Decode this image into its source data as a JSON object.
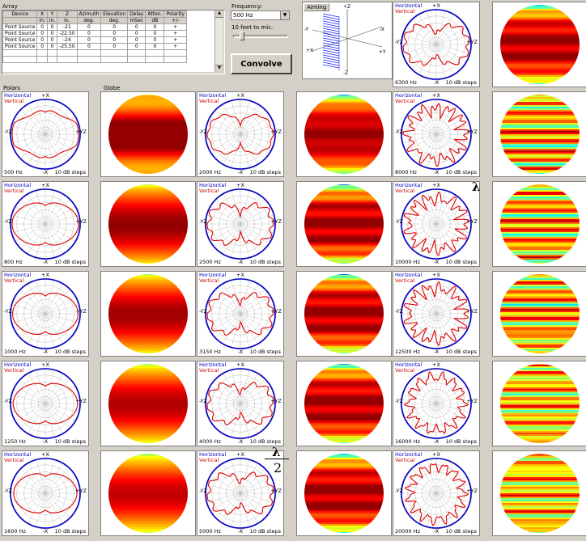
{
  "array_panel": {
    "group_label": "Array",
    "columns": [
      {
        "name": "Device",
        "unit": ""
      },
      {
        "name": "X",
        "unit": "in."
      },
      {
        "name": "Y",
        "unit": "in."
      },
      {
        "name": "Z",
        "unit": "in."
      },
      {
        "name": "Azimuth",
        "unit": "deg."
      },
      {
        "name": "Elevation",
        "unit": "deg."
      },
      {
        "name": "Delay",
        "unit": "mSec"
      },
      {
        "name": "Atten.",
        "unit": "dB"
      },
      {
        "name": "Polarity",
        "unit": "+/-"
      }
    ],
    "rows": [
      [
        "Point Source",
        "0",
        "0",
        "-21",
        "0",
        "0",
        "0",
        "0",
        "+"
      ],
      [
        "Point Source",
        "0",
        "0",
        "-22.50",
        "0",
        "0",
        "0",
        "0",
        "+"
      ],
      [
        "Point Source",
        "0",
        "0",
        "-24",
        "0",
        "0",
        "0",
        "0",
        "+"
      ],
      [
        "Point Source",
        "0",
        "0",
        "-25.50",
        "0",
        "0",
        "0",
        "0",
        "+"
      ]
    ]
  },
  "controls": {
    "frequency_label": "Frequency:",
    "frequency_value": "500 Hz",
    "distance_label": "10 feet to mic.",
    "convolve_label": "Convolve",
    "aiming_label": "Aiming",
    "axis_labels": {
      "pz": "+Z",
      "nz": "-Z",
      "py": "+Y",
      "ny": "-Y",
      "px": "+X",
      "nx": "-X"
    }
  },
  "section_labels": {
    "polars": "Polars",
    "globe": "Globe"
  },
  "polar_common": {
    "horizontal": "Horizontal",
    "vertical": "Vertical",
    "top": "+X",
    "bottom": "-X",
    "left": "-YZ",
    "right": "+YZ",
    "steps": "10 dB steps"
  },
  "polars": [
    {
      "freq": "500 Hz",
      "freq_hz": 500
    },
    {
      "freq": "800 Hz",
      "freq_hz": 800
    },
    {
      "freq": "1000 Hz",
      "freq_hz": 1000
    },
    {
      "freq": "1250 Hz",
      "freq_hz": 1250
    },
    {
      "freq": "1600 Hz",
      "freq_hz": 1600
    },
    {
      "freq": "2000 Hz",
      "freq_hz": 2000
    },
    {
      "freq": "2500 Hz",
      "freq_hz": 2500
    },
    {
      "freq": "3150 Hz",
      "freq_hz": 3150
    },
    {
      "freq": "4000 Hz",
      "freq_hz": 4000
    },
    {
      "freq": "5000 Hz",
      "freq_hz": 5000
    },
    {
      "freq": "6300 Hz",
      "freq_hz": 6300
    },
    {
      "freq": "8000 Hz",
      "freq_hz": 8000
    },
    {
      "freq": "10000 Hz",
      "freq_hz": 10000
    },
    {
      "freq": "12500 Hz",
      "freq_hz": 12500
    },
    {
      "freq": "16000 Hz",
      "freq_hz": 16000
    },
    {
      "freq": "20000 Hz",
      "freq_hz": 20000
    }
  ],
  "annotations": {
    "lambda1": "λ",
    "lambda2": "λ",
    "lambda2_denominator": "2"
  },
  "colors": {
    "horizontal": "#0000c8",
    "vertical": "#e00000",
    "grid": "#b8b8b8",
    "panel": "#d4d0c8"
  }
}
